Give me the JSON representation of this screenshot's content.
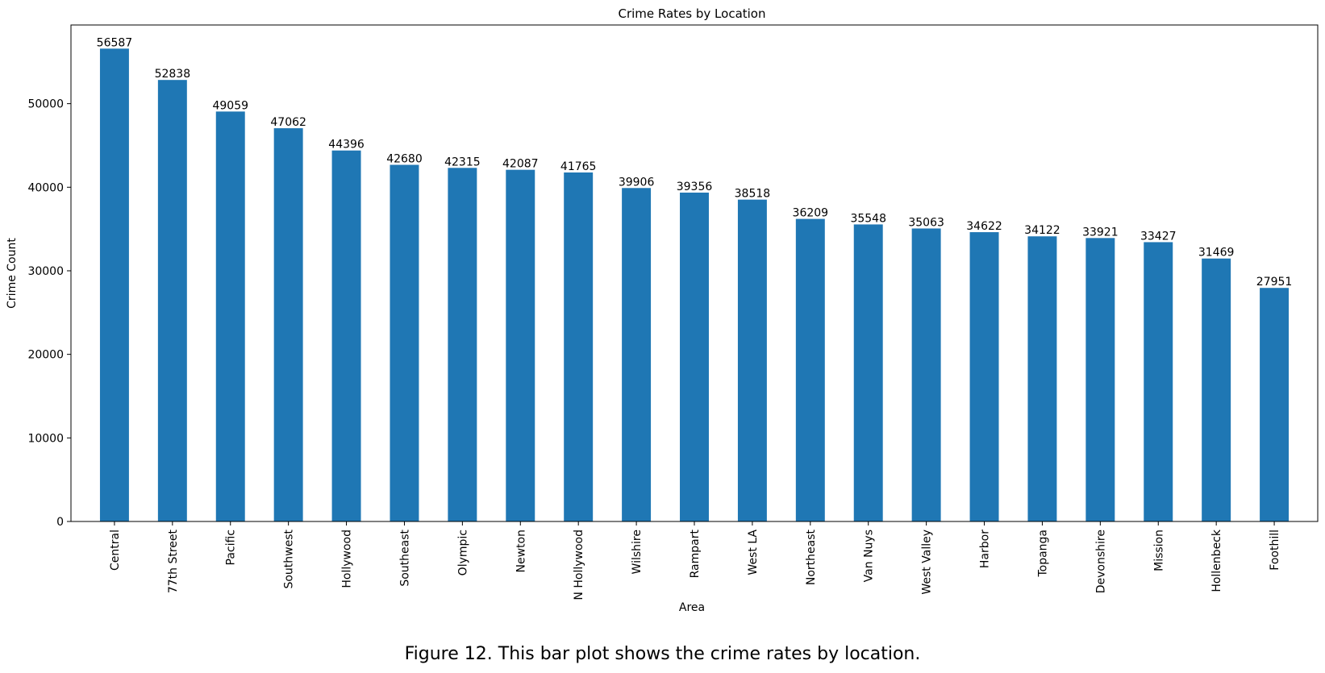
{
  "chart_data": {
    "type": "bar",
    "title": "Crime Rates by Location",
    "xlabel": "Area",
    "ylabel": "Crime Count",
    "categories": [
      "Central",
      "77th Street",
      "Pacific",
      "Southwest",
      "Hollywood",
      "Southeast",
      "Olympic",
      "Newton",
      "N Hollywood",
      "Wilshire",
      "Rampart",
      "West LA",
      "Northeast",
      "Van Nuys",
      "West Valley",
      "Harbor",
      "Topanga",
      "Devonshire",
      "Mission",
      "Hollenbeck",
      "Foothill"
    ],
    "values": [
      56587,
      52838,
      49059,
      47062,
      44396,
      42680,
      42315,
      42087,
      41765,
      39906,
      39356,
      38518,
      36209,
      35548,
      35063,
      34622,
      34122,
      33921,
      33427,
      31469,
      27951
    ],
    "yticks": [
      0,
      10000,
      20000,
      30000,
      40000,
      50000
    ],
    "ylim": [
      0,
      59416
    ],
    "grid": false,
    "bar_color": "#1f77b4"
  },
  "caption": "Figure 12. This bar plot shows the crime rates by location."
}
